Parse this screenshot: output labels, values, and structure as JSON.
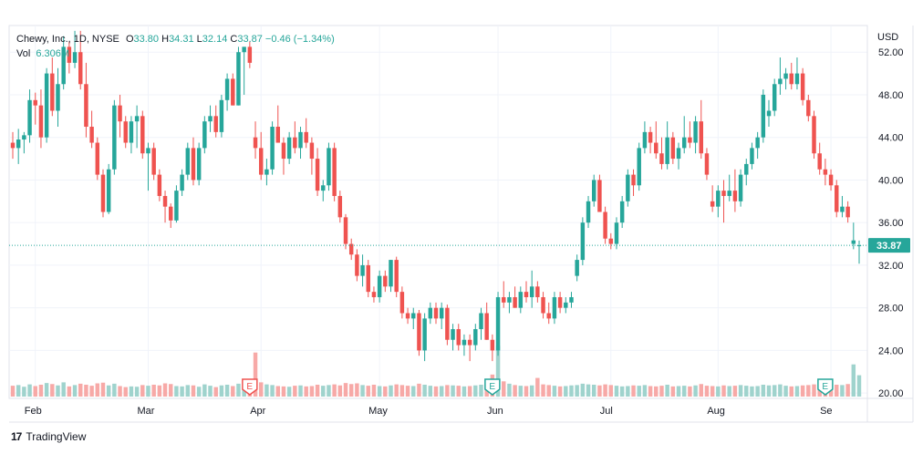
{
  "legend": {
    "symbol": "Chewy, Inc., 1D, NYSE",
    "o_label": "O",
    "o_value": "33.80",
    "h_label": "H",
    "h_value": "34.31",
    "l_label": "L",
    "l_value": "32.14",
    "c_label": "C",
    "c_value": "33.87",
    "change": "−0.46 (−1.34%)",
    "vol_label": "Vol",
    "vol_value": "6.306M"
  },
  "brand": {
    "logo": "17",
    "name": "TradingView"
  },
  "colors": {
    "up": "#26a69a",
    "down": "#ef5350",
    "up_vol": "#9fd3cd",
    "down_vol": "#f7a9a7",
    "grid": "#f0f3fa",
    "axis_text": "#131722"
  },
  "chart_data": {
    "type": "candlestick",
    "title": "Chewy, Inc., 1D, NYSE",
    "currency": "USD",
    "y_range": [
      19.5,
      54.5
    ],
    "y_ticks": [
      20,
      24,
      28,
      32,
      36,
      40,
      44,
      48,
      52
    ],
    "y_tick_labels": [
      "20.00",
      "24.00",
      "28.00",
      "32.00",
      "36.00",
      "40.00",
      "44.00",
      "48.00",
      "52.00"
    ],
    "x_labels": [
      "Feb",
      "Mar",
      "Apr",
      "May",
      "Jun",
      "Jul",
      "Aug",
      "Se"
    ],
    "x_label_index": [
      4,
      24,
      44,
      65,
      86,
      106,
      125,
      145
    ],
    "last_price": "33.87",
    "last_value": 33.87,
    "earnings_markers": [
      {
        "label": "E",
        "index": 42,
        "color": "#ef5350"
      },
      {
        "label": "E",
        "index": 85,
        "color": "#26a69a"
      },
      {
        "label": "E",
        "index": 144,
        "color": "#26a69a"
      }
    ],
    "volume_max_millions": 14,
    "candles": [
      [
        43.5,
        44.5,
        42.0,
        43.0,
        3.2
      ],
      [
        43.0,
        44.8,
        41.5,
        43.8,
        3.4
      ],
      [
        43.8,
        44.5,
        42.5,
        44.2,
        2.9
      ],
      [
        44.2,
        48.5,
        43.5,
        47.5,
        3.6
      ],
      [
        47.5,
        48.2,
        45.2,
        47.0,
        3.1
      ],
      [
        47.0,
        48.5,
        43.0,
        44.0,
        3.5
      ],
      [
        44.0,
        50.5,
        43.5,
        50.0,
        4.0
      ],
      [
        50.0,
        51.5,
        46.0,
        46.5,
        3.7
      ],
      [
        46.5,
        50.5,
        45.0,
        49.0,
        3.3
      ],
      [
        49.0,
        53.5,
        48.5,
        52.5,
        4.2
      ],
      [
        52.5,
        53.0,
        50.0,
        51.0,
        3.0
      ],
      [
        51.0,
        54.0,
        50.5,
        52.0,
        3.4
      ],
      [
        52.0,
        54.0,
        48.5,
        49.0,
        3.8
      ],
      [
        49.0,
        51.0,
        44.0,
        45.0,
        3.5
      ],
      [
        45.0,
        46.5,
        43.0,
        43.5,
        3.2
      ],
      [
        43.5,
        44.0,
        40.0,
        40.5,
        3.9
      ],
      [
        40.5,
        41.0,
        36.5,
        37.0,
        4.1
      ],
      [
        37.0,
        41.5,
        36.8,
        41.0,
        3.3
      ],
      [
        41.0,
        47.5,
        40.5,
        47.0,
        3.8
      ],
      [
        47.0,
        48.0,
        44.0,
        45.5,
        3.1
      ],
      [
        45.5,
        46.0,
        43.0,
        43.5,
        2.8
      ],
      [
        43.5,
        46.0,
        42.5,
        45.5,
        3.0
      ],
      [
        45.5,
        47.0,
        43.0,
        46.0,
        2.9
      ],
      [
        46.0,
        46.5,
        42.0,
        42.5,
        3.4
      ],
      [
        42.5,
        43.5,
        39.0,
        43.0,
        3.2
      ],
      [
        43.0,
        43.5,
        40.0,
        40.5,
        3.5
      ],
      [
        40.5,
        41.0,
        38.0,
        38.5,
        3.3
      ],
      [
        38.5,
        39.0,
        36.0,
        37.5,
        3.9
      ],
      [
        37.5,
        37.8,
        35.5,
        36.2,
        3.7
      ],
      [
        36.2,
        39.5,
        36.0,
        39.0,
        3.1
      ],
      [
        39.0,
        41.0,
        38.5,
        40.5,
        3.0
      ],
      [
        40.5,
        43.5,
        40.0,
        43.0,
        3.4
      ],
      [
        43.0,
        44.0,
        39.5,
        40.0,
        3.3
      ],
      [
        40.0,
        43.5,
        39.5,
        43.0,
        2.9
      ],
      [
        43.0,
        46.0,
        42.5,
        45.5,
        3.6
      ],
      [
        45.5,
        47.0,
        44.5,
        46.0,
        3.2
      ],
      [
        46.0,
        47.0,
        44.0,
        44.5,
        2.8
      ],
      [
        44.5,
        48.0,
        44.0,
        47.5,
        3.3
      ],
      [
        47.5,
        50.0,
        46.5,
        49.5,
        3.5
      ],
      [
        49.5,
        50.0,
        47.0,
        47.0,
        3.1
      ],
      [
        47.0,
        52.5,
        47.0,
        52.0,
        3.8
      ],
      [
        52.0,
        52.5,
        48.0,
        52.5,
        3.0
      ],
      [
        52.5,
        53.0,
        50.5,
        51.0,
        4.5
      ],
      [
        44.0,
        45.5,
        42.0,
        43.0,
        13.0
      ],
      [
        43.0,
        44.5,
        40.0,
        40.5,
        4.2
      ],
      [
        40.5,
        42.0,
        39.5,
        41.0,
        3.6
      ],
      [
        41.0,
        45.5,
        40.5,
        45.0,
        3.4
      ],
      [
        45.0,
        47.0,
        43.5,
        43.5,
        3.1
      ],
      [
        43.5,
        44.0,
        40.5,
        42.0,
        3.0
      ],
      [
        42.0,
        44.5,
        41.5,
        44.0,
        2.9
      ],
      [
        44.0,
        45.5,
        42.5,
        43.0,
        3.2
      ],
      [
        43.0,
        45.0,
        42.0,
        44.5,
        3.3
      ],
      [
        44.5,
        45.8,
        43.0,
        43.5,
        3.0
      ],
      [
        43.5,
        44.0,
        40.5,
        42.0,
        3.1
      ],
      [
        42.0,
        43.0,
        38.5,
        39.0,
        3.5
      ],
      [
        39.0,
        40.0,
        38.0,
        39.5,
        3.2
      ],
      [
        39.5,
        43.5,
        39.0,
        43.0,
        3.4
      ],
      [
        43.0,
        43.5,
        38.0,
        38.5,
        3.6
      ],
      [
        38.5,
        39.0,
        36.0,
        36.5,
        3.3
      ],
      [
        36.5,
        36.8,
        33.5,
        34.0,
        4.0
      ],
      [
        34.0,
        34.5,
        32.5,
        33.0,
        3.7
      ],
      [
        33.0,
        33.5,
        30.5,
        31.0,
        3.9
      ],
      [
        31.0,
        33.0,
        30.0,
        32.0,
        3.4
      ],
      [
        32.0,
        32.5,
        29.0,
        29.5,
        3.2
      ],
      [
        29.5,
        30.0,
        28.5,
        29.0,
        3.5
      ],
      [
        29.0,
        31.5,
        28.5,
        31.0,
        3.1
      ],
      [
        31.0,
        31.5,
        29.5,
        30.0,
        3.0
      ],
      [
        30.0,
        32.5,
        29.5,
        32.5,
        3.3
      ],
      [
        32.5,
        32.8,
        29.0,
        29.5,
        3.6
      ],
      [
        29.5,
        30.0,
        27.0,
        27.5,
        3.4
      ],
      [
        27.5,
        28.0,
        26.5,
        27.0,
        3.2
      ],
      [
        27.0,
        28.0,
        26.0,
        27.5,
        3.1
      ],
      [
        27.5,
        27.8,
        23.5,
        24.0,
        3.8
      ],
      [
        24.0,
        27.5,
        23.0,
        27.0,
        3.5
      ],
      [
        27.0,
        28.5,
        26.5,
        28.0,
        3.2
      ],
      [
        28.0,
        28.5,
        26.5,
        27.0,
        3.0
      ],
      [
        27.0,
        28.5,
        26.0,
        28.0,
        3.1
      ],
      [
        28.0,
        28.3,
        24.5,
        25.0,
        3.4
      ],
      [
        25.0,
        26.5,
        24.0,
        26.0,
        3.3
      ],
      [
        26.0,
        26.5,
        24.0,
        24.5,
        3.2
      ],
      [
        24.5,
        25.5,
        23.5,
        25.0,
        3.0
      ],
      [
        25.0,
        25.5,
        23.0,
        24.5,
        3.1
      ],
      [
        24.5,
        26.5,
        24.0,
        26.0,
        3.3
      ],
      [
        26.0,
        28.0,
        25.0,
        27.5,
        3.5
      ],
      [
        27.5,
        28.5,
        25.0,
        25.0,
        4.0
      ],
      [
        25.0,
        25.5,
        23.0,
        24.0,
        6.5
      ],
      [
        24.0,
        29.5,
        23.5,
        29.0,
        15.0
      ],
      [
        29.0,
        30.5,
        28.0,
        28.5,
        4.5
      ],
      [
        28.5,
        29.5,
        27.5,
        29.0,
        3.8
      ],
      [
        29.0,
        30.0,
        28.0,
        28.0,
        3.4
      ],
      [
        28.0,
        30.0,
        27.5,
        29.5,
        3.2
      ],
      [
        29.5,
        30.5,
        28.5,
        29.0,
        3.1
      ],
      [
        29.0,
        31.5,
        28.0,
        30.0,
        3.3
      ],
      [
        30.0,
        30.5,
        28.5,
        29.0,
        5.5
      ],
      [
        29.0,
        29.5,
        27.0,
        27.5,
        3.6
      ],
      [
        27.5,
        28.5,
        26.5,
        27.0,
        3.4
      ],
      [
        27.0,
        29.5,
        26.5,
        29.0,
        3.2
      ],
      [
        29.0,
        29.5,
        27.5,
        28.0,
        3.0
      ],
      [
        28.0,
        29.0,
        27.5,
        28.5,
        3.1
      ],
      [
        28.5,
        29.5,
        28.0,
        29.0,
        3.3
      ],
      [
        31.0,
        33.0,
        30.5,
        32.5,
        3.4
      ],
      [
        32.5,
        36.5,
        32.0,
        36.0,
        3.8
      ],
      [
        36.0,
        38.5,
        35.5,
        38.0,
        3.6
      ],
      [
        38.0,
        40.5,
        37.5,
        40.0,
        3.5
      ],
      [
        40.0,
        40.5,
        37.0,
        37.0,
        3.3
      ],
      [
        37.0,
        37.5,
        34.0,
        34.5,
        3.6
      ],
      [
        34.5,
        35.0,
        33.5,
        34.0,
        3.4
      ],
      [
        34.0,
        36.5,
        33.5,
        36.0,
        3.2
      ],
      [
        36.0,
        38.5,
        35.5,
        38.0,
        3.0
      ],
      [
        38.0,
        41.0,
        37.5,
        40.5,
        3.1
      ],
      [
        40.5,
        41.0,
        38.5,
        39.5,
        3.3
      ],
      [
        39.5,
        43.5,
        39.0,
        43.0,
        3.2
      ],
      [
        43.0,
        45.5,
        42.5,
        44.5,
        3.4
      ],
      [
        44.5,
        45.0,
        42.5,
        43.5,
        3.1
      ],
      [
        43.5,
        45.5,
        42.0,
        42.5,
        3.0
      ],
      [
        42.5,
        44.0,
        41.0,
        41.5,
        3.2
      ],
      [
        41.5,
        45.5,
        41.0,
        44.0,
        3.5
      ],
      [
        44.0,
        44.5,
        41.5,
        42.0,
        3.0
      ],
      [
        42.0,
        43.5,
        41.0,
        43.0,
        3.1
      ],
      [
        43.0,
        46.0,
        42.5,
        44.0,
        3.2
      ],
      [
        44.0,
        45.5,
        43.0,
        43.5,
        3.0
      ],
      [
        43.5,
        46.0,
        42.5,
        45.5,
        3.3
      ],
      [
        45.5,
        47.5,
        42.0,
        42.5,
        3.7
      ],
      [
        42.5,
        43.0,
        40.0,
        40.5,
        3.2
      ],
      [
        38.0,
        39.5,
        37.0,
        37.5,
        3.1
      ],
      [
        37.5,
        39.5,
        36.5,
        39.0,
        3.0
      ],
      [
        39.0,
        40.0,
        36.0,
        38.5,
        3.3
      ],
      [
        38.5,
        40.5,
        38.0,
        39.0,
        3.1
      ],
      [
        39.0,
        41.0,
        37.0,
        38.0,
        3.2
      ],
      [
        38.0,
        41.0,
        37.5,
        40.5,
        3.4
      ],
      [
        40.5,
        42.0,
        39.5,
        41.5,
        3.2
      ],
      [
        41.5,
        43.5,
        41.0,
        43.0,
        3.0
      ],
      [
        43.0,
        44.5,
        42.0,
        44.0,
        3.1
      ],
      [
        44.0,
        48.5,
        43.5,
        48.0,
        3.5
      ],
      [
        46.0,
        47.5,
        45.0,
        46.5,
        3.3
      ],
      [
        46.5,
        49.5,
        46.0,
        49.0,
        3.4
      ],
      [
        49.0,
        51.5,
        48.0,
        49.5,
        3.6
      ],
      [
        49.5,
        50.5,
        48.5,
        50.0,
        3.2
      ],
      [
        50.0,
        51.0,
        48.5,
        49.0,
        3.0
      ],
      [
        49.0,
        51.5,
        48.5,
        50.0,
        3.1
      ],
      [
        50.0,
        50.5,
        47.0,
        47.5,
        3.3
      ],
      [
        47.5,
        48.0,
        45.5,
        46.0,
        3.4
      ],
      [
        46.0,
        46.5,
        42.0,
        42.5,
        3.6
      ],
      [
        42.5,
        43.5,
        40.5,
        41.0,
        3.3
      ],
      [
        41.0,
        42.0,
        39.5,
        40.5,
        3.1
      ],
      [
        40.5,
        41.0,
        39.0,
        39.5,
        3.0
      ],
      [
        39.5,
        40.0,
        36.5,
        37.0,
        3.5
      ],
      [
        37.0,
        38.5,
        36.5,
        37.5,
        3.4
      ],
      [
        37.5,
        38.0,
        36.0,
        36.5,
        3.7
      ],
      [
        34.0,
        36.0,
        33.5,
        34.33,
        9.5
      ],
      [
        33.8,
        34.31,
        32.14,
        33.87,
        6.3
      ]
    ]
  }
}
